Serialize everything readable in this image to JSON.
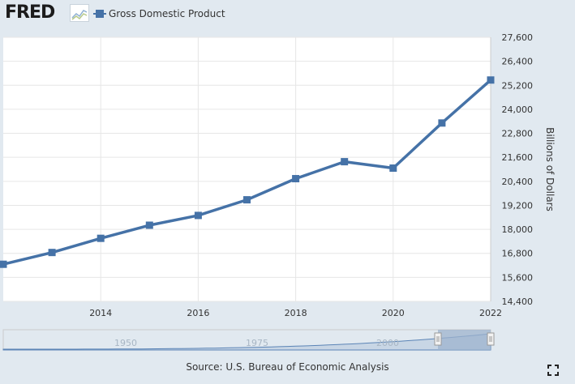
{
  "header": {
    "logo_text": "FRED",
    "legend_label": "Gross Domestic Product"
  },
  "colors": {
    "series": "#4572a7",
    "background": "#e1e9f0",
    "plot_bg": "#ffffff",
    "navigator_fill": "#9db3ce"
  },
  "chart_data": {
    "type": "line",
    "title": "",
    "xlabel": "",
    "ylabel": "Billions of Dollars",
    "series": [
      {
        "name": "Gross Domestic Product",
        "x": [
          2012,
          2013,
          2014,
          2015,
          2016,
          2017,
          2018,
          2019,
          2020,
          2021,
          2022
        ],
        "values": [
          16254,
          16843,
          17551,
          18206,
          18695,
          19477,
          20533,
          21381,
          21060,
          23315,
          25463
        ]
      }
    ],
    "xlim": [
      2012,
      2022
    ],
    "ylim": [
      14400,
      27600
    ],
    "y_ticks": [
      "14,400",
      "15,600",
      "16,800",
      "18,000",
      "19,200",
      "20,400",
      "21,600",
      "22,800",
      "24,000",
      "25,200",
      "26,400",
      "27,600"
    ],
    "x_ticks": [
      "2014",
      "2016",
      "2018",
      "2020",
      "2022"
    ],
    "grid": true,
    "legend_position": "top-left"
  },
  "navigator": {
    "labels": [
      "1950",
      "1975",
      "2000"
    ]
  },
  "footer": {
    "source": "Source: U.S. Bureau of Economic Analysis"
  },
  "icons": {
    "fullscreen": "fullscreen-icon"
  }
}
